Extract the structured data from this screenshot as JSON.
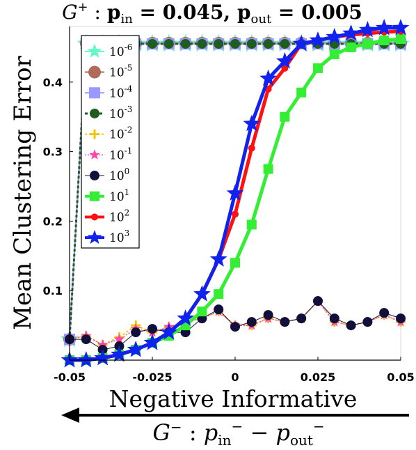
{
  "chart_data": {
    "type": "line",
    "title": "G⁺ : p_in = 0.045, p_out = 0.005",
    "title_parts": {
      "graph": "G",
      "sup": "+",
      "sep": " : ",
      "p": "p",
      "in": "in",
      "eq1": " = 0.045, ",
      "out": "out",
      "eq2": " = 0.005"
    },
    "xlabel": "Negative Informative",
    "ylabel": "Mean Clustering Error",
    "subcaption_parts": {
      "graph": "G",
      "sup": "−",
      "sep": " : ",
      "p": "p",
      "in": "in",
      "minus": " − ",
      "out": "out"
    },
    "xlim": [
      -0.05,
      0.05
    ],
    "ylim": [
      0,
      0.48
    ],
    "xticks": [
      "-0.05",
      "-0.025",
      "0",
      "0.025",
      "0.05"
    ],
    "yticks": [
      "0.1",
      "0.2",
      "0.3",
      "0.4"
    ],
    "x": [
      -0.05,
      -0.045,
      -0.04,
      -0.035,
      -0.03,
      -0.025,
      -0.02,
      -0.015,
      -0.01,
      -0.005,
      0,
      0.005,
      0.01,
      0.015,
      0.02,
      0.025,
      0.03,
      0.035,
      0.04,
      0.045,
      0.05
    ],
    "series": [
      {
        "name": "10",
        "exp": "-6",
        "color": "#66f7c9",
        "marker": "star",
        "size": 14,
        "lineWidth": 2,
        "dash": "",
        "values": [
          0.03,
          0.455,
          0.455,
          0.455,
          0.455,
          0.455,
          0.455,
          0.455,
          0.455,
          0.455,
          0.455,
          0.455,
          0.455,
          0.455,
          0.455,
          0.455,
          0.455,
          0.455,
          0.455,
          0.455,
          0.455
        ]
      },
      {
        "name": "10",
        "exp": "-5",
        "color": "#b06a5c",
        "marker": "circle",
        "size": 9,
        "lineWidth": 2,
        "dash": "",
        "values": [
          0.03,
          0.456,
          0.456,
          0.456,
          0.456,
          0.456,
          0.456,
          0.456,
          0.456,
          0.456,
          0.456,
          0.456,
          0.456,
          0.456,
          0.456,
          0.456,
          0.456,
          0.456,
          0.456,
          0.456,
          0.456
        ]
      },
      {
        "name": "10",
        "exp": "-4",
        "color": "#9999ff",
        "marker": "square",
        "size": 8,
        "lineWidth": 2,
        "dash": "",
        "values": [
          0.03,
          0.455,
          0.455,
          0.455,
          0.455,
          0.455,
          0.455,
          0.455,
          0.455,
          0.455,
          0.455,
          0.455,
          0.455,
          0.455,
          0.455,
          0.455,
          0.455,
          0.455,
          0.455,
          0.455,
          0.455
        ]
      },
      {
        "name": "10",
        "exp": "-3",
        "color": "#1f5c1f",
        "marker": "circle",
        "size": 7,
        "lineWidth": 3,
        "dash": "4,3",
        "values": [
          0.03,
          0.455,
          0.455,
          0.455,
          0.455,
          0.455,
          0.455,
          0.455,
          0.455,
          0.455,
          0.455,
          0.455,
          0.455,
          0.455,
          0.455,
          0.455,
          0.455,
          0.455,
          0.455,
          0.455,
          0.455
        ]
      },
      {
        "name": "10",
        "exp": "-2",
        "color": "#f5c400",
        "marker": "plus",
        "size": 7,
        "lineWidth": 2,
        "dash": "3,3",
        "values": [
          0.03,
          0.035,
          0.022,
          0.033,
          0.05,
          0.04,
          0.048,
          0.055,
          0.06,
          0.07,
          0.05,
          0.05,
          0.06,
          0.055,
          0.06,
          0.085,
          0.055,
          0.05,
          0.055,
          0.065,
          0.055
        ]
      },
      {
        "name": "10",
        "exp": "-1",
        "color": "#ff44aa",
        "marker": "star",
        "size": 8,
        "lineWidth": 1.5,
        "dash": "2,2",
        "values": [
          0.03,
          0.035,
          0.022,
          0.03,
          0.045,
          0.04,
          0.048,
          0.055,
          0.06,
          0.07,
          0.05,
          0.05,
          0.06,
          0.055,
          0.06,
          0.085,
          0.055,
          0.05,
          0.055,
          0.065,
          0.055
        ]
      },
      {
        "name": "10",
        "exp": "0",
        "color": "#10103a",
        "marker": "circle",
        "size": 7,
        "lineWidth": 1,
        "dash": "",
        "values": [
          0.03,
          0.03,
          0.015,
          0.02,
          0.04,
          0.045,
          0.04,
          0.04,
          0.06,
          0.073,
          0.048,
          0.055,
          0.065,
          0.055,
          0.06,
          0.085,
          0.06,
          0.05,
          0.055,
          0.068,
          0.06
        ]
      },
      {
        "name": "10",
        "exp": "1",
        "color": "#33ee33",
        "marker": "square",
        "size": 7,
        "lineWidth": 5,
        "dash": "",
        "values": [
          0.0,
          0.0,
          0.003,
          0.008,
          0.015,
          0.025,
          0.035,
          0.05,
          0.07,
          0.095,
          0.14,
          0.195,
          0.275,
          0.35,
          0.385,
          0.42,
          0.44,
          0.45,
          0.455,
          0.46,
          0.462
        ]
      },
      {
        "name": "10",
        "exp": "2",
        "color": "#ff1111",
        "marker": "circle",
        "size": 5,
        "lineWidth": 5,
        "dash": "",
        "values": [
          0.0,
          0.0,
          0.003,
          0.008,
          0.015,
          0.025,
          0.04,
          0.06,
          0.095,
          0.145,
          0.21,
          0.305,
          0.39,
          0.42,
          0.455,
          0.46,
          0.465,
          0.468,
          0.47,
          0.472,
          0.473
        ]
      },
      {
        "name": "10",
        "exp": "3",
        "color": "#1122ee",
        "marker": "star",
        "size": 13,
        "lineWidth": 5,
        "dash": "",
        "values": [
          0.0,
          0.0,
          0.003,
          0.008,
          0.015,
          0.025,
          0.04,
          0.06,
          0.095,
          0.145,
          0.24,
          0.34,
          0.405,
          0.43,
          0.455,
          0.46,
          0.465,
          0.47,
          0.475,
          0.478,
          0.478
        ]
      }
    ]
  }
}
